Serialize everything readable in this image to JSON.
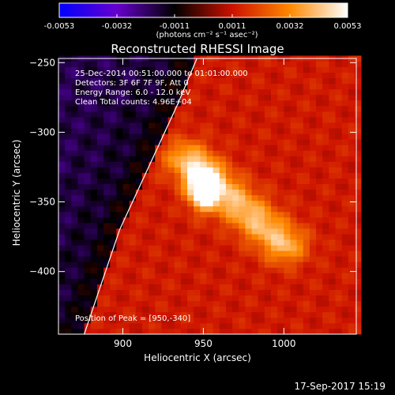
{
  "chart_data": {
    "type": "heatmap",
    "title": "Reconstructed RHESSI Image",
    "xlabel": "Heliocentric X (arcsec)",
    "ylabel": "Heliocentric Y (arcsec)",
    "xlim": [
      860,
      1045
    ],
    "ylim": [
      -445,
      -247
    ],
    "xticks": [
      900,
      950,
      1000
    ],
    "yticks": [
      -250,
      -300,
      -350,
      -400
    ],
    "colorbar": {
      "label": "(photons cm⁻² s⁻¹ asec⁻²)",
      "range": [
        -0.0053,
        0.0053
      ],
      "ticks": [
        "-0.0053",
        "-0.0032",
        "-0.0011",
        "0.0011",
        "0.0032",
        "0.0053"
      ],
      "colormap": [
        "#0000ff",
        "#6600cc",
        "#000000",
        "#cc1100",
        "#ff8800",
        "#ffffff"
      ]
    },
    "peak": {
      "x": 950,
      "y": -340,
      "value": 0.0053
    },
    "source_elongation": {
      "x": [
        940,
        1000
      ],
      "y": [
        -320,
        -380
      ]
    },
    "limb_arc": {
      "x": [
        876,
        898,
        918,
        934,
        946
      ],
      "y": [
        -445,
        -370,
        -320,
        -280,
        -247
      ]
    },
    "annotations": {
      "time_range": "25-Dec-2014 00:51:00.000 to 01:01:00.000",
      "detectors": "Detectors: 3F 6F 7F 9F, Att 0",
      "energy_range": "Energy Range: 6.0 - 12.0 keV",
      "clean_counts": "Clean     Total counts: 4.96E+04",
      "peak_position": "Position of Peak = [950,-340]"
    },
    "grid": false
  },
  "footer": {
    "timestamp": "17-Sep-2017 15:19"
  }
}
